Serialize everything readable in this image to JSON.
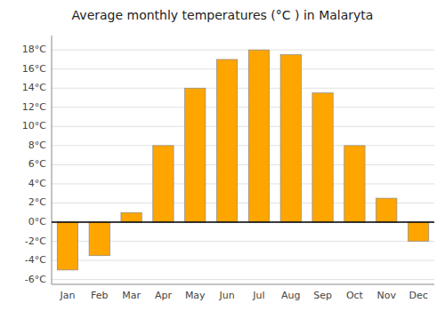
{
  "chart_data": {
    "type": "bar",
    "title": "Average monthly temperatures (°C ) in Malaryta",
    "categories": [
      "Jan",
      "Feb",
      "Mar",
      "Apr",
      "May",
      "Jun",
      "Jul",
      "Aug",
      "Sep",
      "Oct",
      "Nov",
      "Dec"
    ],
    "values": [
      -5.0,
      -3.5,
      1.0,
      8.0,
      14.0,
      17.0,
      18.0,
      17.5,
      13.5,
      8.0,
      2.5,
      -2.0
    ],
    "color": "#FFA500",
    "ylim": [
      -6.5,
      19.5
    ],
    "yticks": [
      {
        "value": -6,
        "label": "-6°C"
      },
      {
        "value": -4,
        "label": "-4°C"
      },
      {
        "value": -2,
        "label": "-2°C"
      },
      {
        "value": 0,
        "label": "0°C"
      },
      {
        "value": 2,
        "label": "2°C"
      },
      {
        "value": 4,
        "label": "4°C"
      },
      {
        "value": 6,
        "label": "6°C"
      },
      {
        "value": 8,
        "label": "8°C"
      },
      {
        "value": 10,
        "label": "10°C"
      },
      {
        "value": 12,
        "label": "12°C"
      },
      {
        "value": 14,
        "label": "14°C"
      },
      {
        "value": 16,
        "label": "16°C"
      },
      {
        "value": 18,
        "label": "18°C"
      }
    ],
    "grid": true
  }
}
